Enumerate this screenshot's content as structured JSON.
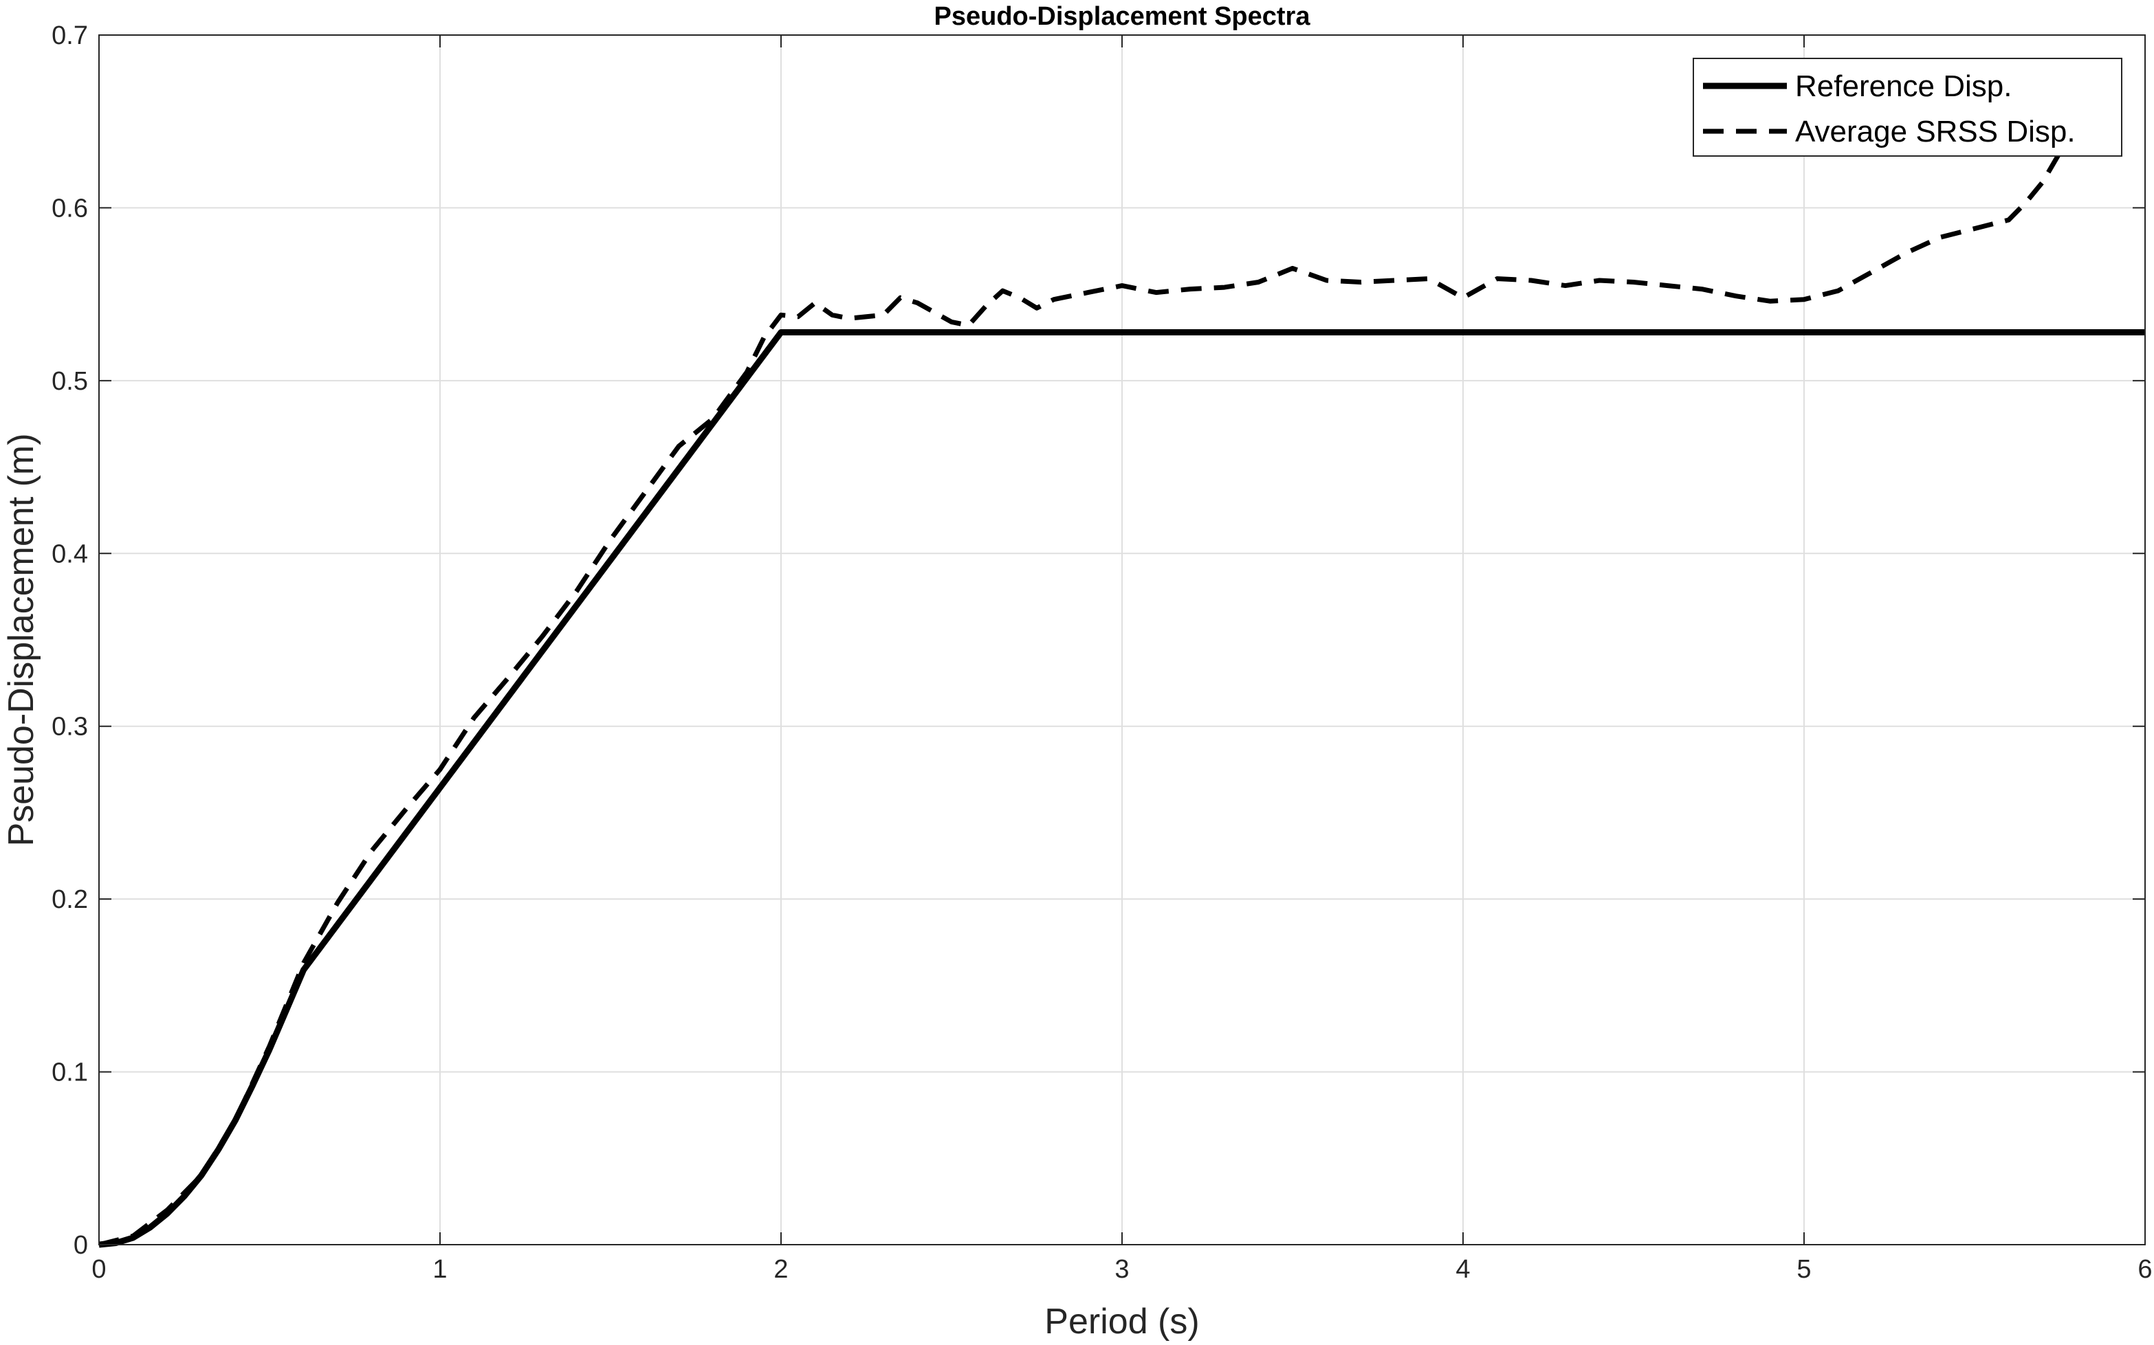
{
  "chart_data": {
    "type": "line",
    "title": "Pseudo-Displacement Spectra",
    "xlabel": "Period (s)",
    "ylabel": "Pseudo-Displacement (m)",
    "xlim": [
      0,
      6
    ],
    "ylim": [
      0,
      0.7
    ],
    "xticks": [
      0,
      1,
      2,
      3,
      4,
      5,
      6
    ],
    "yticks": [
      0,
      0.1,
      0.2,
      0.3,
      0.4,
      0.5,
      0.6,
      0.7
    ],
    "xtick_labels": [
      "0",
      "1",
      "2",
      "3",
      "4",
      "5",
      "6"
    ],
    "ytick_labels": [
      "0",
      "0.1",
      "0.2",
      "0.3",
      "0.4",
      "0.5",
      "0.6",
      "0.7"
    ],
    "grid": true,
    "legend_position": "top-right",
    "series": [
      {
        "name": "Reference Disp.",
        "style": "solid",
        "color": "#000000",
        "x": [
          0,
          0.05,
          0.1,
          0.15,
          0.2,
          0.25,
          0.3,
          0.35,
          0.4,
          0.45,
          0.5,
          0.55,
          0.6,
          2.0,
          6.0
        ],
        "y": [
          0,
          0.001,
          0.004,
          0.01,
          0.018,
          0.028,
          0.04,
          0.055,
          0.072,
          0.092,
          0.113,
          0.136,
          0.159,
          0.528,
          0.528
        ]
      },
      {
        "name": "Average SRSS Disp.",
        "style": "dashed",
        "color": "#000000",
        "x": [
          0,
          0.1,
          0.2,
          0.3,
          0.4,
          0.5,
          0.6,
          0.7,
          0.8,
          0.9,
          1.0,
          1.1,
          1.2,
          1.3,
          1.4,
          1.5,
          1.6,
          1.7,
          1.8,
          1.9,
          1.95,
          2.0,
          2.05,
          2.1,
          2.15,
          2.2,
          2.3,
          2.35,
          2.4,
          2.5,
          2.55,
          2.6,
          2.65,
          2.7,
          2.75,
          2.8,
          2.9,
          3.0,
          3.1,
          3.2,
          3.3,
          3.4,
          3.5,
          3.6,
          3.7,
          3.8,
          3.9,
          4.0,
          4.1,
          4.2,
          4.3,
          4.4,
          4.5,
          4.6,
          4.7,
          4.8,
          4.9,
          5.0,
          5.1,
          5.2,
          5.3,
          5.4,
          5.5,
          5.6,
          5.65,
          5.7,
          5.75
        ],
        "y": [
          0,
          0.005,
          0.02,
          0.04,
          0.072,
          0.115,
          0.163,
          0.198,
          0.228,
          0.252,
          0.275,
          0.305,
          0.328,
          0.352,
          0.378,
          0.408,
          0.435,
          0.462,
          0.478,
          0.505,
          0.525,
          0.538,
          0.537,
          0.545,
          0.538,
          0.536,
          0.538,
          0.548,
          0.545,
          0.534,
          0.532,
          0.543,
          0.552,
          0.548,
          0.542,
          0.547,
          0.551,
          0.555,
          0.551,
          0.553,
          0.554,
          0.557,
          0.565,
          0.558,
          0.557,
          0.558,
          0.559,
          0.548,
          0.559,
          0.558,
          0.555,
          0.558,
          0.557,
          0.555,
          0.553,
          0.549,
          0.546,
          0.547,
          0.552,
          0.563,
          0.574,
          0.583,
          0.588,
          0.593,
          0.603,
          0.615,
          0.632
        ]
      }
    ]
  }
}
